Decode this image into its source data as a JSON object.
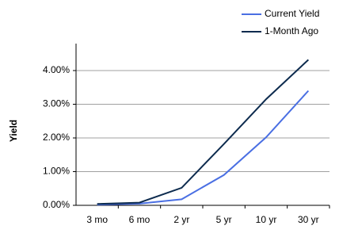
{
  "chart_data": {
    "type": "line",
    "y_label": "Yield",
    "categories": [
      "3 mo",
      "6 mo",
      "2 yr",
      "5 yr",
      "10 yr",
      "30 yr"
    ],
    "series": [
      {
        "name": "Current Yield",
        "color": "#4a6fe3",
        "values": [
          0.02,
          0.05,
          0.18,
          0.9,
          2.02,
          3.4
        ]
      },
      {
        "name": "1-Month Ago",
        "color": "#0d2b4e",
        "values": [
          0.04,
          0.08,
          0.52,
          1.82,
          3.15,
          4.32
        ]
      }
    ],
    "ylim": [
      0,
      4.8
    ],
    "yticks": [
      {
        "value": 0,
        "label": "0.00%"
      },
      {
        "value": 1,
        "label": "1.00%"
      },
      {
        "value": 2,
        "label": "2.00%"
      },
      {
        "value": 3,
        "label": "3.00%"
      },
      {
        "value": 4,
        "label": "4.00%"
      }
    ],
    "grid": true,
    "legend": "top-right"
  }
}
